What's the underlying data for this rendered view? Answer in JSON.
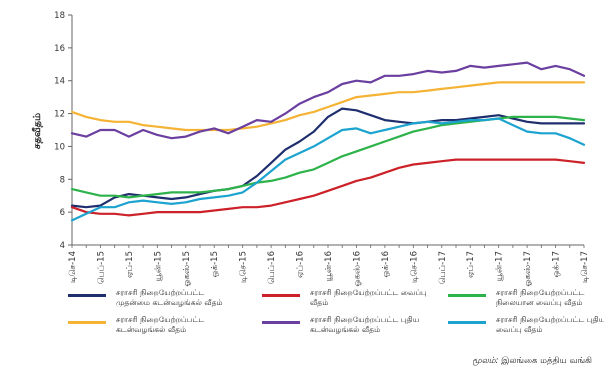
{
  "chart_data": {
    "type": "line",
    "ylabel": "சதவீதம்",
    "ylim": [
      4,
      18
    ],
    "yticks": [
      4,
      6,
      8,
      10,
      12,
      14,
      16,
      18
    ],
    "x": [
      "டிசெ-14",
      "ஜன-15",
      "பெப்-15",
      "மார்-15",
      "ஏப்-15",
      "மே-15",
      "யூன்-15",
      "யூலை-15",
      "ஓகஸ்-15",
      "செப்-15",
      "ஒக்-15",
      "நவ-15",
      "டிசெ-15",
      "ஜன-16",
      "பெப்-16",
      "மார்-16",
      "ஏப்-16",
      "மே-16",
      "யூன்-16",
      "யூலை-16",
      "ஓகஸ்-16",
      "செப்-16",
      "ஒக்-16",
      "நவ-16",
      "டிசெ-16",
      "ஜன-17",
      "பெப்-17",
      "மார்-17",
      "ஏப்-17",
      "மே-17",
      "யூன்-17",
      "யூலை-17",
      "ஓகஸ்-17",
      "செப்-17",
      "ஒக்-17",
      "நவ-17",
      "டிசெ-17"
    ],
    "xtick_labels": [
      "டிசெ-14",
      "பெப்-15",
      "ஏப்-15",
      "யூன்-15",
      "ஓகஸ்-15",
      "ஒக்-15",
      "டிசெ-15",
      "பெப்-16",
      "ஏப்-16",
      "யூன்-16",
      "ஓகஸ்-16",
      "ஒக்-16",
      "டிசெ-16",
      "பெப்-17",
      "ஏப்-17",
      "யூன்-17",
      "ஓகஸ்-17",
      "ஒக்-17",
      "டிசெ-17"
    ],
    "grid": false,
    "legend_position": "bottom",
    "series": [
      {
        "name": "சராசரி நிறையேற்றப்பட்ட முதன்மை கடன்வழங்கல் வீதம்",
        "color": "#1f2f6e",
        "values": [
          6.4,
          6.3,
          6.4,
          6.9,
          7.1,
          7.0,
          6.9,
          6.8,
          6.9,
          7.1,
          7.3,
          7.4,
          7.6,
          8.2,
          9.0,
          9.8,
          10.3,
          10.9,
          11.8,
          12.3,
          12.2,
          11.9,
          11.6,
          11.5,
          11.4,
          11.5,
          11.6,
          11.6,
          11.7,
          11.8,
          11.9,
          11.7,
          11.5,
          11.4,
          11.4,
          11.4,
          11.4
        ]
      },
      {
        "name": "சராசரி நிறையேற்றப்பட்ட கடன்வழங்கல் வீதம்",
        "color": "#f5b335",
        "values": [
          12.1,
          11.8,
          11.6,
          11.5,
          11.5,
          11.3,
          11.2,
          11.1,
          11.0,
          11.0,
          11.0,
          11.0,
          11.1,
          11.2,
          11.4,
          11.6,
          11.9,
          12.1,
          12.4,
          12.7,
          13.0,
          13.1,
          13.2,
          13.3,
          13.3,
          13.4,
          13.5,
          13.6,
          13.7,
          13.8,
          13.9,
          13.9,
          13.9,
          13.9,
          13.9,
          13.9,
          13.9
        ]
      },
      {
        "name": "சராசரி நிறையேற்றப்பட்ட வைப்பு வீதம்",
        "color": "#cc2128",
        "values": [
          6.3,
          6.0,
          5.9,
          5.9,
          5.8,
          5.9,
          6.0,
          6.0,
          6.0,
          6.0,
          6.1,
          6.2,
          6.3,
          6.3,
          6.4,
          6.6,
          6.8,
          7.0,
          7.3,
          7.6,
          7.9,
          8.1,
          8.4,
          8.7,
          8.9,
          9.0,
          9.1,
          9.2,
          9.2,
          9.2,
          9.2,
          9.2,
          9.2,
          9.2,
          9.2,
          9.1,
          9.0
        ]
      },
      {
        "name": "சராசரி நிறையேற்றப்பட்ட புதிய கடன்வழங்கல் வீதம்",
        "color": "#6b3fa0",
        "values": [
          10.8,
          10.6,
          11.0,
          11.0,
          10.6,
          11.0,
          10.7,
          10.5,
          10.6,
          10.9,
          11.1,
          10.8,
          11.2,
          11.6,
          11.5,
          12.0,
          12.6,
          13.0,
          13.3,
          13.8,
          14.0,
          13.9,
          14.3,
          14.3,
          14.4,
          14.6,
          14.5,
          14.6,
          14.9,
          14.8,
          14.9,
          15.0,
          15.1,
          14.7,
          14.9,
          14.7,
          14.3
        ]
      },
      {
        "name": "சராசரி நிறையேற்றப்பட்ட நிலையான வைப்பு வீதம்",
        "color": "#2db34a",
        "values": [
          7.4,
          7.2,
          7.0,
          7.0,
          6.9,
          7.0,
          7.1,
          7.2,
          7.2,
          7.2,
          7.3,
          7.4,
          7.6,
          7.8,
          7.9,
          8.1,
          8.4,
          8.6,
          9.0,
          9.4,
          9.7,
          10.0,
          10.3,
          10.6,
          10.9,
          11.1,
          11.3,
          11.4,
          11.5,
          11.6,
          11.7,
          11.8,
          11.8,
          11.8,
          11.8,
          11.7,
          11.6
        ]
      },
      {
        "name": "சராசரி நிறையேற்றப்பட்ட புதிய வைப்பு வீதம்",
        "color": "#1ca3cf",
        "values": [
          5.5,
          5.9,
          6.3,
          6.3,
          6.6,
          6.7,
          6.6,
          6.5,
          6.6,
          6.8,
          6.9,
          7.0,
          7.2,
          7.8,
          8.5,
          9.2,
          9.6,
          10.0,
          10.5,
          11.0,
          11.1,
          10.8,
          11.0,
          11.2,
          11.4,
          11.5,
          11.4,
          11.5,
          11.6,
          11.6,
          11.7,
          11.3,
          10.9,
          10.8,
          10.8,
          10.5,
          10.1
        ]
      }
    ]
  },
  "legend_order": [
    0,
    2,
    4,
    1,
    3,
    5
  ],
  "source": {
    "label": "மூலம்:",
    "value": "இலங்கை மத்திய வங்கி"
  }
}
